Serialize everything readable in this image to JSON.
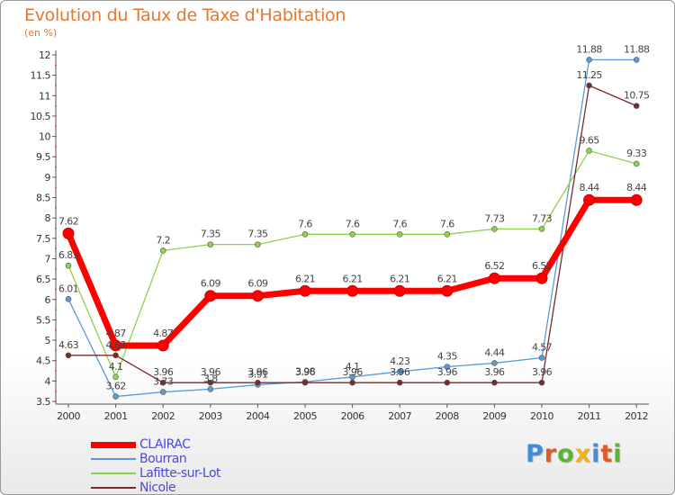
{
  "header": {
    "title": "Evolution du Taux de Taxe d'Habitation",
    "subtitle": "(en %)"
  },
  "logo": {
    "text": "Proxiti",
    "letters": [
      {
        "ch": "P",
        "color": "#3f8fd8"
      },
      {
        "ch": "r",
        "color": "#e05a2a"
      },
      {
        "ch": "o",
        "color": "#5bb531"
      },
      {
        "ch": "x",
        "color": "#f0b020"
      },
      {
        "ch": "i",
        "color": "#3f8fd8"
      },
      {
        "ch": "t",
        "color": "#e05a2a"
      },
      {
        "ch": "i",
        "color": "#5bb531"
      }
    ]
  },
  "chart_data": {
    "type": "line",
    "title": "Evolution du Taux de Taxe d'Habitation",
    "ylabel": "(en %)",
    "xlabel": "",
    "x": [
      "2000",
      "2001",
      "2002",
      "2003",
      "2004",
      "2005",
      "2006",
      "2007",
      "2008",
      "2009",
      "2010",
      "2011",
      "2012"
    ],
    "ylim": [
      3.5,
      12
    ],
    "yticks": [
      3.5,
      4,
      4.5,
      5,
      5.5,
      6,
      6.5,
      7,
      7.5,
      8,
      8.5,
      9,
      9.5,
      10,
      10.5,
      11,
      11.5,
      12
    ],
    "grid": false,
    "legend_position": "bottom-left",
    "series": [
      {
        "name": "CLAIRAC",
        "color": "#ff0000",
        "values": [
          7.62,
          4.87,
          4.87,
          6.09,
          6.09,
          6.21,
          6.21,
          6.21,
          6.21,
          6.52,
          6.52,
          8.44,
          8.44
        ],
        "labels": [
          "7.62",
          "4.87",
          "4.87",
          "6.09",
          "6.09",
          "6.21",
          "6.21",
          "6.21",
          "6.21",
          "6.52",
          "6.52",
          "8.44",
          "8.44"
        ]
      },
      {
        "name": "Bourran",
        "color": "#5b9bd5",
        "values": [
          6.01,
          3.62,
          3.73,
          3.8,
          3.91,
          3.98,
          4.1,
          4.23,
          4.35,
          4.44,
          4.57,
          11.88,
          11.88
        ],
        "labels": [
          "6.01",
          "3.62",
          "3.73",
          "3.8",
          "3.91",
          "3.98",
          "4.1",
          "4.23",
          "4.35",
          "4.44",
          "4.57",
          "11.88",
          "11.88"
        ]
      },
      {
        "name": "Lafitte-sur-Lot",
        "color": "#8fd14f",
        "values": [
          6.83,
          4.1,
          7.2,
          7.35,
          7.35,
          7.6,
          7.6,
          7.6,
          7.6,
          7.73,
          7.73,
          9.65,
          9.33
        ],
        "labels": [
          "6.83",
          "4.1",
          "7.2",
          "7.35",
          "7.35",
          "7.6",
          "7.6",
          "7.6",
          "7.6",
          "7.73",
          "7.73",
          "9.65",
          "9.33"
        ]
      },
      {
        "name": "Nicole",
        "color": "#7b2a2a",
        "values": [
          4.63,
          4.63,
          3.96,
          3.96,
          3.96,
          3.96,
          3.96,
          3.96,
          3.96,
          3.96,
          3.96,
          11.25,
          10.75
        ],
        "labels": [
          "4.63",
          "4.63",
          "3.96",
          "3.96",
          "3.96",
          "3.96",
          "3.96",
          "3.96",
          "3.96",
          "3.96",
          "3.96",
          "11.25",
          "10.75"
        ]
      }
    ]
  }
}
